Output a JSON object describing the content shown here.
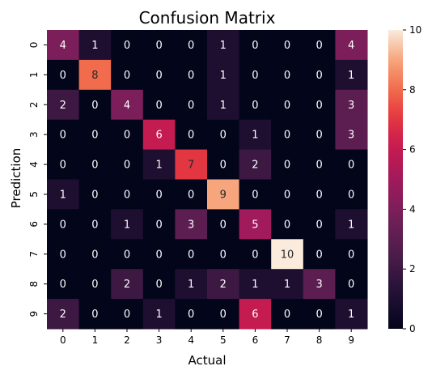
{
  "chart_data": {
    "type": "heatmap",
    "title": "Confusion Matrix",
    "xlabel": "Actual",
    "ylabel": "Prediction",
    "x_categories": [
      "0",
      "1",
      "2",
      "3",
      "4",
      "5",
      "6",
      "7",
      "8",
      "9"
    ],
    "y_categories": [
      "0",
      "1",
      "2",
      "3",
      "4",
      "5",
      "6",
      "7",
      "8",
      "9"
    ],
    "matrix": [
      [
        4,
        1,
        0,
        0,
        0,
        1,
        0,
        0,
        0,
        4
      ],
      [
        0,
        8,
        0,
        0,
        0,
        1,
        0,
        0,
        0,
        1
      ],
      [
        2,
        0,
        4,
        0,
        0,
        1,
        0,
        0,
        0,
        3
      ],
      [
        0,
        0,
        0,
        6,
        0,
        0,
        1,
        0,
        0,
        3
      ],
      [
        0,
        0,
        0,
        1,
        7,
        0,
        2,
        0,
        0,
        0
      ],
      [
        1,
        0,
        0,
        0,
        0,
        9,
        0,
        0,
        0,
        0
      ],
      [
        0,
        0,
        1,
        0,
        3,
        0,
        5,
        0,
        0,
        1
      ],
      [
        0,
        0,
        0,
        0,
        0,
        0,
        0,
        10,
        0,
        0
      ],
      [
        0,
        0,
        2,
        0,
        1,
        2,
        1,
        1,
        3,
        0
      ],
      [
        2,
        0,
        0,
        1,
        0,
        0,
        6,
        0,
        0,
        1
      ]
    ],
    "colorbar": {
      "min": 0,
      "max": 10,
      "ticks": [
        "0",
        "2",
        "4",
        "6",
        "8",
        "10"
      ]
    },
    "colormap": "rocket",
    "annotations": true,
    "grid": false
  }
}
